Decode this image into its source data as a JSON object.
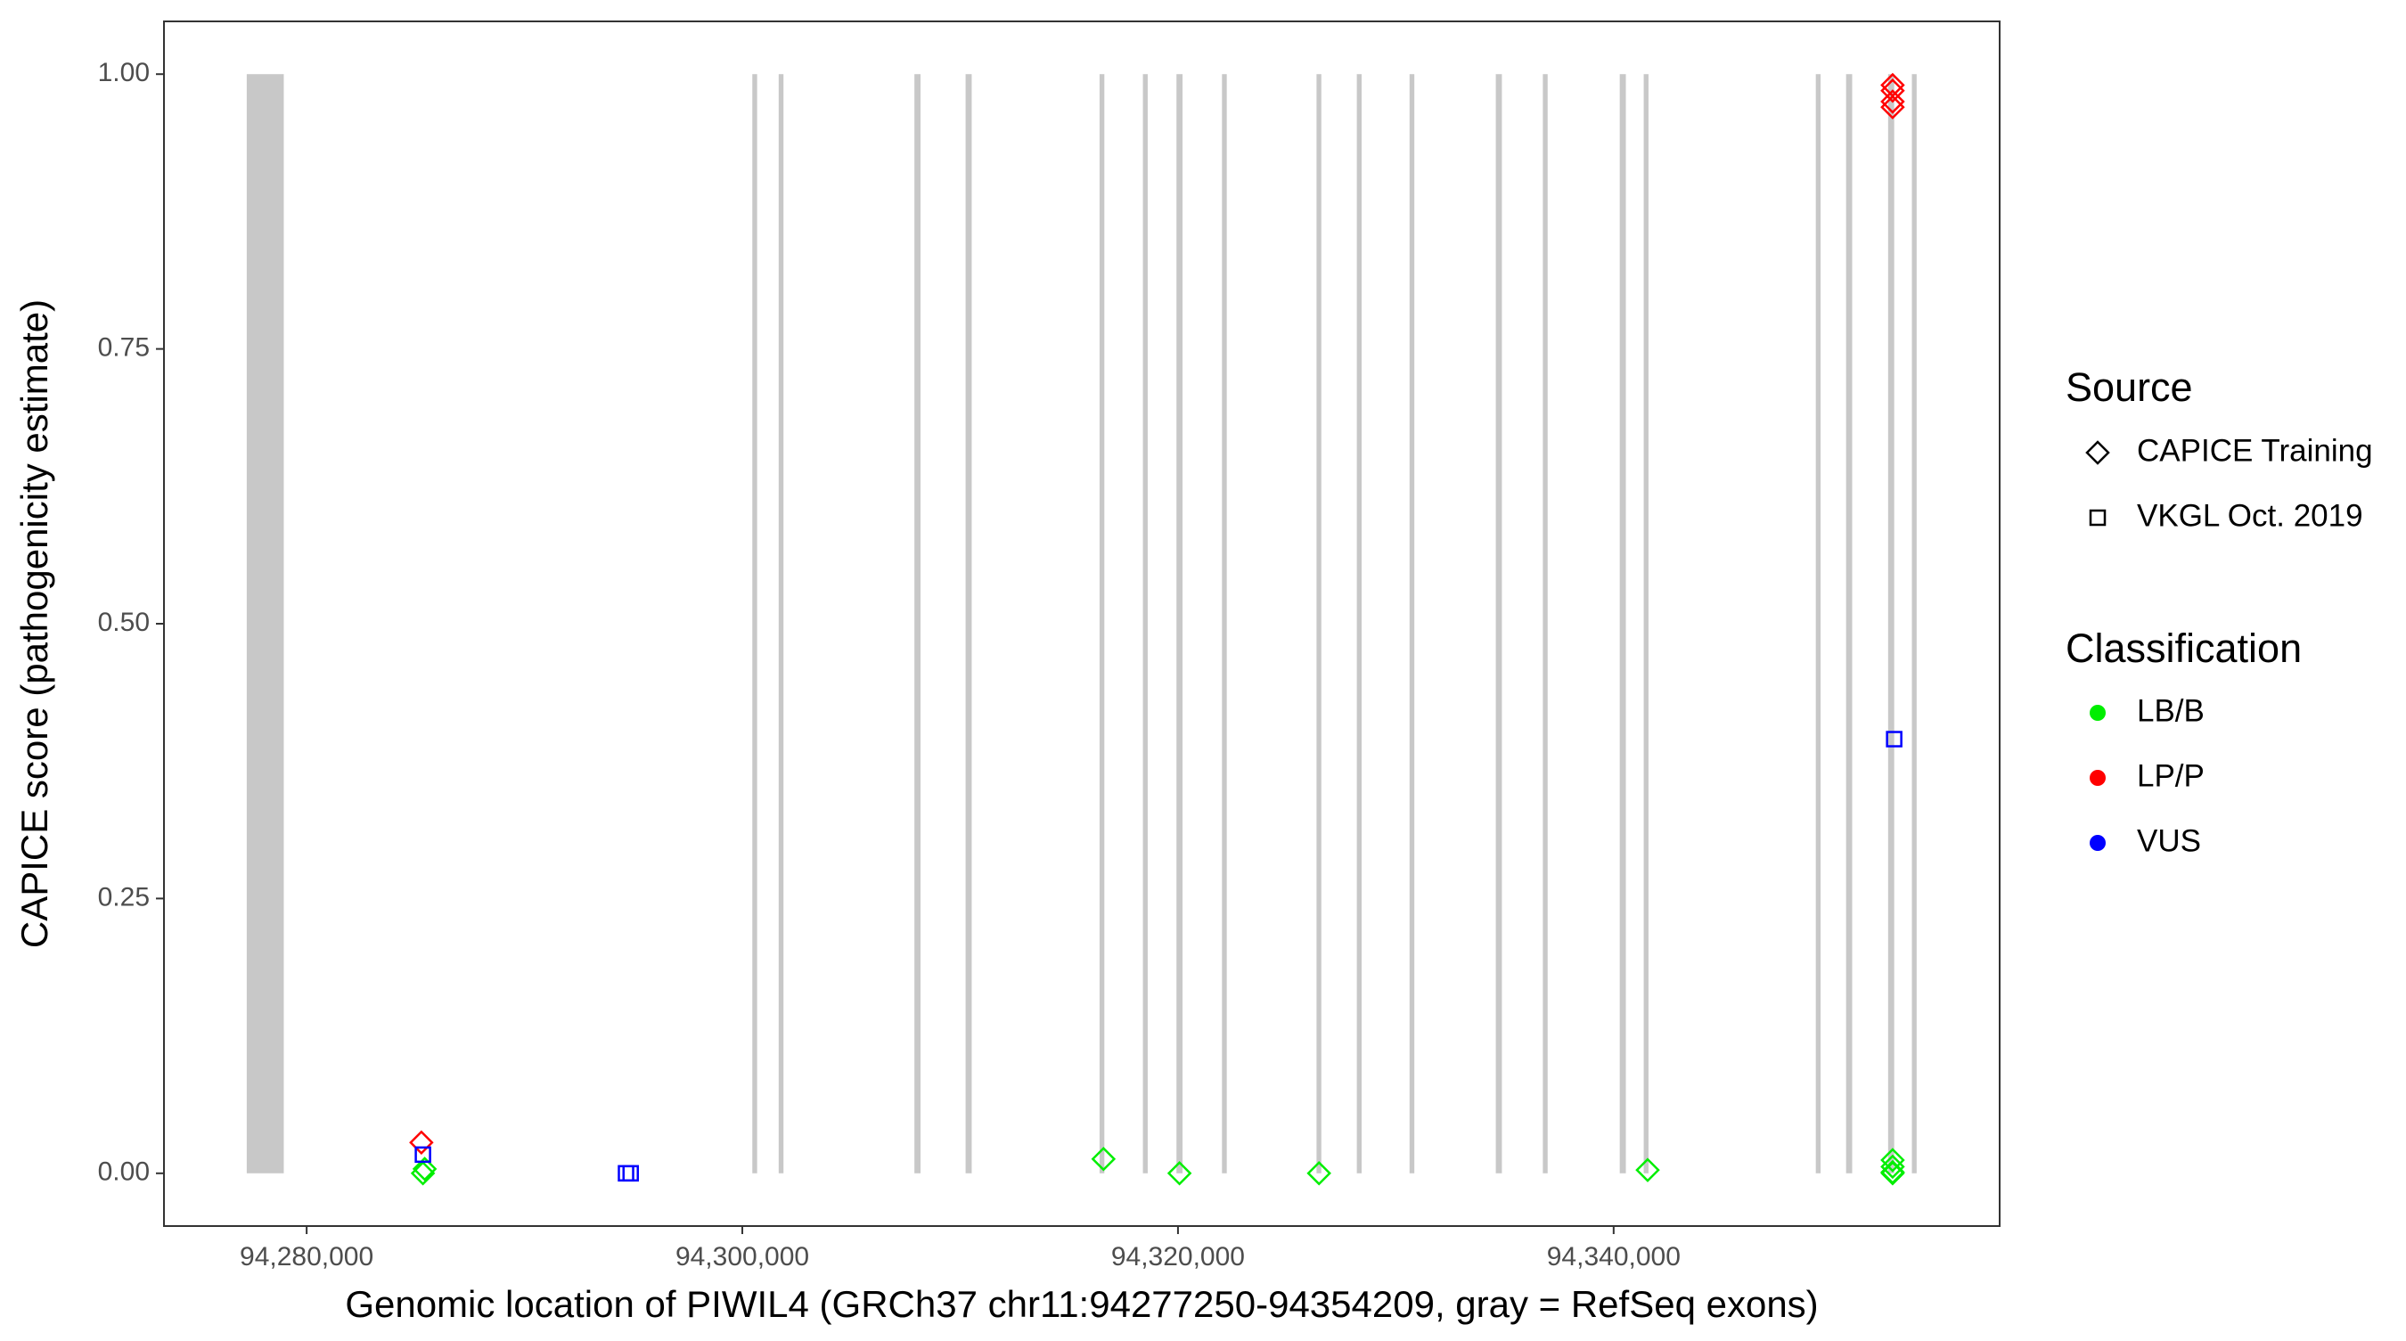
{
  "chart_data": {
    "type": "scatter",
    "x_label": "Genomic location of PIWIL4 (GRCh37 chr11:94277250-94354209, gray = RefSeq exons)",
    "y_label": "CAPICE score (pathogenicity estimate)",
    "xlim": [
      94273450,
      94357720
    ],
    "ylim": [
      -0.048,
      1.048
    ],
    "xticks": [
      {
        "value": 94280000,
        "label": "94,280,000"
      },
      {
        "value": 94300000,
        "label": "94,300,000"
      },
      {
        "value": 94320000,
        "label": "94,320,000"
      },
      {
        "value": 94340000,
        "label": "94,340,000"
      }
    ],
    "yticks": [
      {
        "value": 0,
        "label": "0.00"
      },
      {
        "value": 0.25,
        "label": "0.25"
      },
      {
        "value": 0.5,
        "label": "0.50"
      },
      {
        "value": 0.75,
        "label": "0.75"
      },
      {
        "value": 1,
        "label": "1.00"
      }
    ],
    "exon_color": "#c8c8c8",
    "exons": [
      [
        94277250,
        94278950
      ],
      [
        94300460,
        94300680
      ],
      [
        94301670,
        94301890
      ],
      [
        94307900,
        94308180
      ],
      [
        94310250,
        94310530
      ],
      [
        94316400,
        94316620
      ],
      [
        94318390,
        94318610
      ],
      [
        94319930,
        94320210
      ],
      [
        94322020,
        94322240
      ],
      [
        94326360,
        94326580
      ],
      [
        94328210,
        94328430
      ],
      [
        94330630,
        94330850
      ],
      [
        94334590,
        94334870
      ],
      [
        94336750,
        94336970
      ],
      [
        94340280,
        94340560
      ],
      [
        94341380,
        94341600
      ],
      [
        94349280,
        94349500
      ],
      [
        94350670,
        94350950
      ],
      [
        94352600,
        94352880
      ],
      [
        94353690,
        94353910
      ]
    ],
    "legend_position": "right",
    "source_title": "Source",
    "classification_title": "Classification",
    "classes": [
      {
        "name": "LB/B",
        "color": "#00ee00"
      },
      {
        "name": "LP/P",
        "color": "#ff0000"
      },
      {
        "name": "VUS",
        "color": "#0000ff"
      }
    ],
    "sources": [
      {
        "name": "CAPICE Training",
        "shape": "diamond",
        "series": [
          {
            "color": "#00ee00",
            "x": [
              94285338,
              94285420,
              94316581,
              94320069,
              94326474,
              94341561,
              94352807,
              94352807,
              94352807,
              94352807
            ],
            "y": [
              0.0,
              0.004,
              0.013,
              0.0,
              0.0,
              0.003,
              0.012,
              0.006,
              0.001,
              0.0
            ]
          },
          {
            "color": "#ff0000",
            "x": [
              94285267,
              94352807,
              94352807,
              94352807,
              94352807
            ],
            "y": [
              0.028,
              0.99,
              0.985,
              0.975,
              0.97
            ]
          }
        ]
      },
      {
        "name": "VKGL Oct. 2019",
        "shape": "square",
        "series": [
          {
            "color": "#0000ff",
            "x": [
              94285338,
              94294661,
              94294875,
              94352878
            ],
            "y": [
              0.017,
              0.0,
              0.0,
              0.395
            ]
          }
        ]
      }
    ]
  }
}
